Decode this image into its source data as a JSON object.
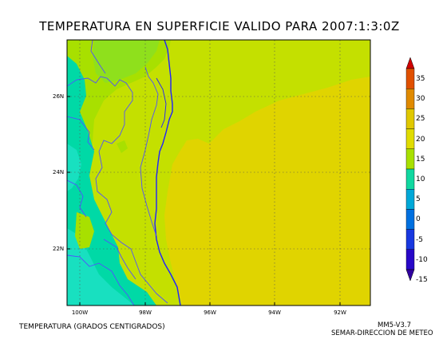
{
  "title": "TEMPERATURA EN SUPERFICIE VALIDO PARA 2007:1:3:0Z",
  "map": {
    "lat_labels": [
      "26N",
      "24N",
      "22N"
    ],
    "lon_labels": [
      "100W",
      "98W",
      "96W",
      "94W",
      "92W"
    ],
    "field_colors": {
      "teal": "#00d9a6",
      "cyan": "#18e0c0",
      "light_green": "#8fe01c",
      "green": "#a8e000",
      "yellow_green": "#c4e000",
      "yellow": "#e0d400",
      "coast": "#2020ff",
      "border": "#5050ff"
    }
  },
  "colorbar": {
    "labels": [
      "35",
      "30",
      "25",
      "20",
      "15",
      "10",
      "5",
      "0",
      "-5",
      "-10",
      "-15"
    ],
    "colors": [
      "#d00000",
      "#e05000",
      "#e08a00",
      "#e0c800",
      "#e0dc00",
      "#a8e000",
      "#10d8a0",
      "#00a8d8",
      "#0070e0",
      "#1838e0",
      "#2808c8",
      "#3000a0"
    ]
  },
  "footer": {
    "left": "TEMPERATURA (GRADOS CENTIGRADOS)",
    "right_line1": "MM5-V3.7",
    "right_line2": "SEMAR-DIRECCION DE METEO"
  }
}
